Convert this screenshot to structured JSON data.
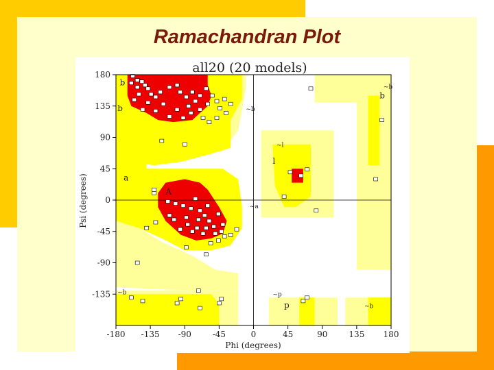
{
  "slide": {
    "title": "Ramachandran Plot"
  },
  "colors": {
    "most_favoured": "#ee0000",
    "additional_allowed": "#ffff00",
    "generously_allowed": "#ffff99",
    "disallowed": "#ffffff",
    "slide_panel": "#ffffcc",
    "deco_yellow": "#ffcc00",
    "deco_orange": "#ff9900",
    "title_color": "#7a1a0a"
  },
  "chart_data": {
    "type": "scatter",
    "title": "all20 (20 models)",
    "xlabel": "Phi (degrees)",
    "ylabel": "Psi (degrees)",
    "xlim": [
      -180,
      180
    ],
    "ylim": [
      -180,
      180
    ],
    "x_ticks": [
      -180,
      -135,
      -90,
      -45,
      0,
      45,
      90,
      135,
      180
    ],
    "y_ticks": [
      180,
      135,
      90,
      45,
      0,
      -45,
      -90,
      -135
    ],
    "region_labels": [
      "b",
      "b",
      "~b",
      "~b",
      "a",
      "A",
      "~a",
      "~l",
      "l",
      "~b",
      "b",
      "~p",
      "p",
      "~b"
    ],
    "grid": false,
    "reference_lines": {
      "x": 0,
      "y": 0
    },
    "regions": {
      "most_favoured": [
        [
          [
            -165,
            180
          ],
          [
            -60,
            180
          ],
          [
            -60,
            165
          ],
          [
            -55,
            150
          ],
          [
            -60,
            135
          ],
          [
            -70,
            125
          ],
          [
            -80,
            115
          ],
          [
            -105,
            112
          ],
          [
            -125,
            115
          ],
          [
            -140,
            125
          ],
          [
            -160,
            135
          ],
          [
            -165,
            150
          ]
        ],
        [
          [
            -115,
            25
          ],
          [
            -90,
            30
          ],
          [
            -70,
            25
          ],
          [
            -60,
            15
          ],
          [
            -45,
            -10
          ],
          [
            -35,
            -30
          ],
          [
            -40,
            -48
          ],
          [
            -55,
            -55
          ],
          [
            -75,
            -58
          ],
          [
            -95,
            -50
          ],
          [
            -115,
            -30
          ],
          [
            -125,
            -10
          ],
          [
            -125,
            10
          ]
        ],
        [
          [
            50,
            45
          ],
          [
            65,
            45
          ],
          [
            65,
            25
          ],
          [
            50,
            25
          ]
        ]
      ],
      "additional_allowed": [
        [
          [
            -180,
            180
          ],
          [
            -15,
            180
          ],
          [
            -15,
            145
          ],
          [
            -30,
            115
          ],
          [
            -30,
            75
          ],
          [
            -60,
            65
          ],
          [
            -95,
            55
          ],
          [
            -130,
            50
          ],
          [
            -160,
            55
          ],
          [
            -180,
            60
          ]
        ],
        [
          [
            -180,
            60
          ],
          [
            -140,
            60
          ],
          [
            -140,
            45
          ],
          [
            -40,
            45
          ],
          [
            -20,
            30
          ],
          [
            -15,
            -10
          ],
          [
            -15,
            -40
          ],
          [
            -30,
            -65
          ],
          [
            -55,
            -72
          ],
          [
            -90,
            -72
          ],
          [
            -120,
            -55
          ],
          [
            -150,
            -40
          ],
          [
            -180,
            -30
          ]
        ],
        [
          [
            -180,
            -135
          ],
          [
            -55,
            -135
          ],
          [
            -45,
            -150
          ],
          [
            -45,
            -180
          ],
          [
            -180,
            -180
          ]
        ],
        [
          [
            25,
            80
          ],
          [
            75,
            80
          ],
          [
            75,
            5
          ],
          [
            55,
            -10
          ],
          [
            40,
            -10
          ],
          [
            28,
            20
          ]
        ],
        [
          [
            150,
            150
          ],
          [
            165,
            150
          ],
          [
            165,
            50
          ],
          [
            150,
            50
          ]
        ],
        [
          [
            60,
            -140
          ],
          [
            80,
            -140
          ],
          [
            80,
            -180
          ],
          [
            60,
            -180
          ]
        ],
        [
          [
            150,
            -140
          ],
          [
            180,
            -140
          ],
          [
            180,
            -180
          ],
          [
            150,
            -180
          ]
        ],
        [
          [
            -165,
            180
          ],
          [
            -110,
            180
          ],
          [
            -110,
            170
          ],
          [
            -165,
            170
          ]
        ]
      ],
      "generously_allowed": [
        [
          [
            -180,
            180
          ],
          [
            -10,
            180
          ],
          [
            -10,
            160
          ],
          [
            -20,
            100
          ],
          [
            -40,
            70
          ],
          [
            -90,
            65
          ],
          [
            -140,
            62
          ],
          [
            -180,
            65
          ]
        ],
        [
          [
            -180,
            -30
          ],
          [
            -150,
            -40
          ],
          [
            -120,
            -60
          ],
          [
            -80,
            -80
          ],
          [
            -50,
            -100
          ],
          [
            -20,
            -105
          ],
          [
            -20,
            -130
          ],
          [
            -80,
            -130
          ],
          [
            -180,
            -125
          ]
        ],
        [
          [
            10,
            100
          ],
          [
            105,
            100
          ],
          [
            105,
            -25
          ],
          [
            10,
            -25
          ]
        ],
        [
          [
            80,
            180
          ],
          [
            180,
            180
          ],
          [
            180,
            140
          ],
          [
            80,
            140
          ]
        ],
        [
          [
            135,
            180
          ],
          [
            180,
            180
          ],
          [
            180,
            -100
          ],
          [
            135,
            -100
          ]
        ],
        [
          [
            20,
            -140
          ],
          [
            110,
            -140
          ],
          [
            110,
            -180
          ],
          [
            20,
            -180
          ]
        ],
        [
          [
            120,
            -140
          ],
          [
            180,
            -140
          ],
          [
            180,
            -180
          ],
          [
            120,
            -180
          ]
        ],
        [
          [
            -180,
            -130
          ],
          [
            -20,
            -130
          ],
          [
            -20,
            -180
          ],
          [
            -180,
            -180
          ]
        ]
      ]
    },
    "residues": [
      [
        -158,
        178
      ],
      [
        -152,
        172
      ],
      [
        -146,
        170
      ],
      [
        -160,
        168
      ],
      [
        -152,
        162
      ],
      [
        -142,
        165
      ],
      [
        -138,
        160
      ],
      [
        -150,
        152
      ],
      [
        -156,
        144
      ],
      [
        -134,
        152
      ],
      [
        -128,
        148
      ],
      [
        -122,
        155
      ],
      [
        -110,
        162
      ],
      [
        -100,
        165
      ],
      [
        -96,
        155
      ],
      [
        -88,
        148
      ],
      [
        -80,
        155
      ],
      [
        -76,
        142
      ],
      [
        -70,
        150
      ],
      [
        -62,
        160
      ],
      [
        -54,
        150
      ],
      [
        -48,
        142
      ],
      [
        -44,
        132
      ],
      [
        -38,
        145
      ],
      [
        -30,
        138
      ],
      [
        -36,
        125
      ],
      [
        -48,
        118
      ],
      [
        -58,
        112
      ],
      [
        -66,
        118
      ],
      [
        -82,
        125
      ],
      [
        -92,
        118
      ],
      [
        -100,
        130
      ],
      [
        -110,
        120
      ],
      [
        -118,
        138
      ],
      [
        -128,
        128
      ],
      [
        -138,
        140
      ],
      [
        -145,
        130
      ],
      [
        -85,
        135
      ],
      [
        -70,
        130
      ],
      [
        -60,
        138
      ],
      [
        -112,
        -2
      ],
      [
        -102,
        -5
      ],
      [
        -92,
        -8
      ],
      [
        -82,
        -12
      ],
      [
        -76,
        2
      ],
      [
        -70,
        -15
      ],
      [
        -64,
        -22
      ],
      [
        -60,
        -8
      ],
      [
        -58,
        -30
      ],
      [
        -52,
        -38
      ],
      [
        -46,
        -20
      ],
      [
        -42,
        -45
      ],
      [
        -38,
        -52
      ],
      [
        -46,
        -58
      ],
      [
        -56,
        -62
      ],
      [
        -66,
        -48
      ],
      [
        -74,
        -40
      ],
      [
        -86,
        -35
      ],
      [
        -96,
        -42
      ],
      [
        -104,
        -28
      ],
      [
        -88,
        -25
      ],
      [
        -72,
        -28
      ],
      [
        -62,
        -40
      ],
      [
        -50,
        -48
      ],
      [
        -30,
        -50
      ],
      [
        -22,
        -42
      ],
      [
        -88,
        -68
      ],
      [
        -62,
        -78
      ],
      [
        -128,
        -32
      ],
      [
        -152,
        -90
      ],
      [
        -40,
        -35
      ],
      [
        -80,
        -45
      ],
      [
        -130,
        10
      ],
      [
        -110,
        -22
      ],
      [
        -140,
        -40
      ],
      [
        -120,
        85
      ],
      [
        -90,
        80
      ],
      [
        -130,
        15
      ],
      [
        48,
        40
      ],
      [
        62,
        35
      ],
      [
        70,
        44
      ],
      [
        40,
        5
      ],
      [
        82,
        -15
      ],
      [
        168,
        115
      ],
      [
        160,
        30
      ],
      [
        75,
        160
      ],
      [
        65,
        -145
      ],
      [
        70,
        -140
      ],
      [
        -160,
        -140
      ],
      [
        -145,
        -145
      ],
      [
        -100,
        -148
      ],
      [
        -95,
        -142
      ],
      [
        -72,
        -130
      ],
      [
        -70,
        -155
      ],
      [
        -42,
        -142
      ],
      [
        -45,
        -148
      ]
    ]
  }
}
